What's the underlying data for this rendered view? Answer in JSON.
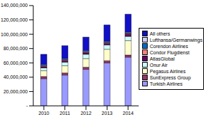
{
  "chart_data": {
    "type": "bar",
    "stacked": true,
    "legend": "right",
    "grid": false,
    "categories": [
      "2010",
      "2011",
      "2012",
      "2013",
      "2014"
    ],
    "ylim": [
      0,
      140000000
    ],
    "yticks": [
      {
        "value": 0,
        "label": "-"
      },
      {
        "value": 20000000,
        "label": "20,000,000"
      },
      {
        "value": 40000000,
        "label": "40,000,000"
      },
      {
        "value": 60000000,
        "label": "60,000,000"
      },
      {
        "value": 80000000,
        "label": "80,000,000"
      },
      {
        "value": 100000000,
        "label": "100,000,000"
      },
      {
        "value": 120000000,
        "label": "120,000,000"
      },
      {
        "value": 140000000,
        "label": "140,000,000"
      }
    ],
    "series": [
      {
        "name": "Turkish Airlines",
        "color": "#9999ff",
        "values": [
          38000000,
          43000000,
          51000000,
          60000000,
          68000000
        ]
      },
      {
        "name": "SunExpress Group",
        "color": "#993366",
        "values": [
          3000000,
          3000000,
          3000000,
          3000000,
          3000000
        ]
      },
      {
        "name": "Pegasus Airlines",
        "color": "#ffffcc",
        "values": [
          8000000,
          10000000,
          12000000,
          16000000,
          20000000
        ]
      },
      {
        "name": "Onur Air",
        "color": "#ccffff",
        "values": [
          4000000,
          5000000,
          6000000,
          6000000,
          6000000
        ]
      },
      {
        "name": "AtlasGlobal",
        "color": "#660066",
        "values": [
          1500000,
          2000000,
          2000000,
          2000000,
          3000000
        ]
      },
      {
        "name": "Condor Flugdienst",
        "color": "#ff8080",
        "values": [
          1000000,
          1000000,
          1000000,
          1000000,
          1000000
        ]
      },
      {
        "name": "Corendon Airlines",
        "color": "#0066cc",
        "values": [
          1000000,
          1000000,
          1000000,
          1000000,
          1000000
        ]
      },
      {
        "name": "Lufthansa/Germanwings",
        "color": "#ccccff",
        "values": [
          1000000,
          1000000,
          1000000,
          1000000,
          1000000
        ]
      },
      {
        "name": "All others",
        "color": "#1010c8",
        "values": [
          14500000,
          18000000,
          19000000,
          23000000,
          25000000
        ]
      }
    ]
  }
}
